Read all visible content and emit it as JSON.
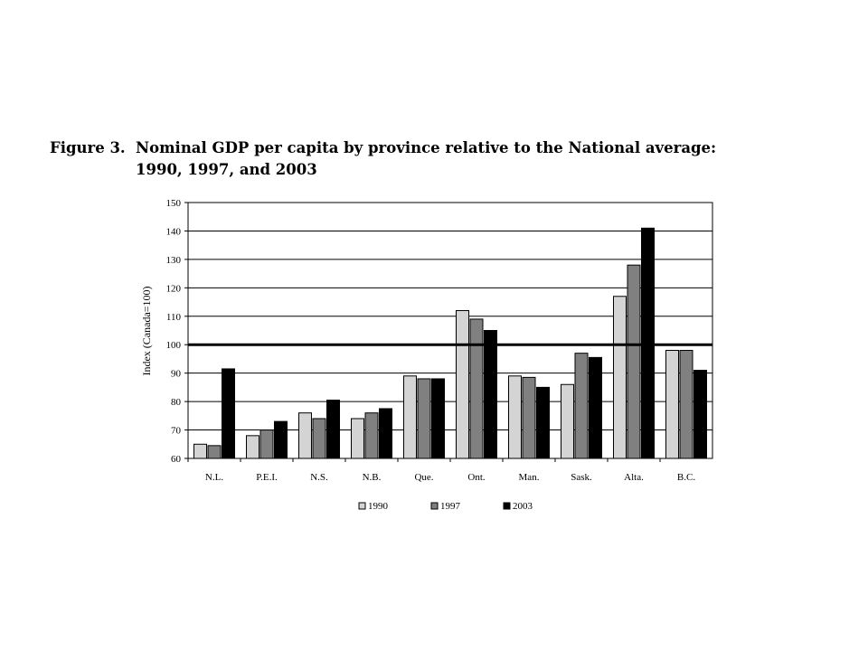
{
  "figure": {
    "label": "Figure 3.",
    "title_line1": "Nominal GDP per capita by province relative to the National average:",
    "title_line2": "1990, 1997, and 2003"
  },
  "chart_data": {
    "type": "bar",
    "categories": [
      "N.L.",
      "P.E.I.",
      "N.S.",
      "N.B.",
      "Que.",
      "Ont.",
      "Man.",
      "Sask.",
      "Alta.",
      "B.C."
    ],
    "series": [
      {
        "name": "1990",
        "color": "#d4d4d4",
        "values": [
          65,
          68,
          76,
          74,
          89,
          112,
          89,
          86,
          117,
          98
        ]
      },
      {
        "name": "1997",
        "color": "#808080",
        "values": [
          64.5,
          70,
          74,
          76,
          88,
          109,
          88.5,
          97,
          128,
          98
        ]
      },
      {
        "name": "2003",
        "color": "#000000",
        "values": [
          91.5,
          73,
          80.5,
          77.5,
          88,
          105,
          85,
          95.5,
          141,
          91
        ]
      }
    ],
    "ylabel": "Index (Canada=100)",
    "ylim": [
      60,
      150
    ],
    "yticks": [
      "60",
      "70",
      "80",
      "90",
      "100",
      "110",
      "120",
      "130",
      "140",
      "150"
    ],
    "reference_line": 100,
    "grid": true,
    "legend_position": "bottom"
  }
}
